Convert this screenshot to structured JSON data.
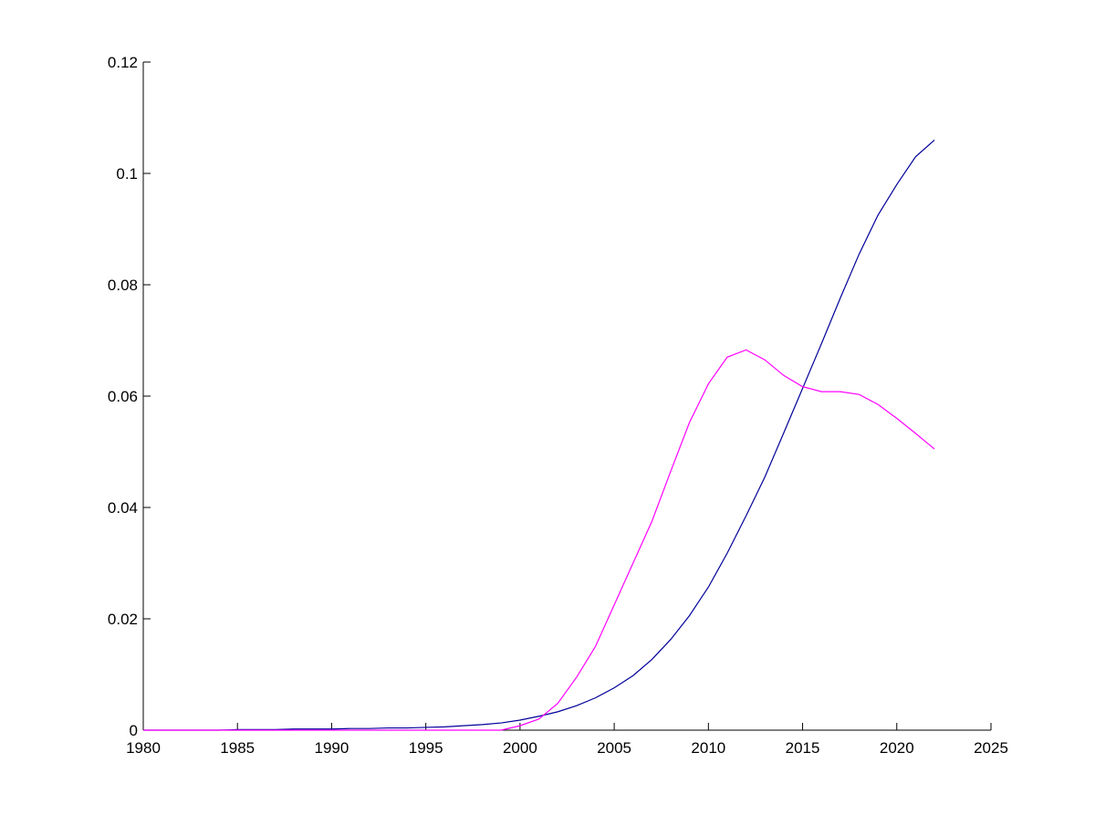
{
  "chart_data": {
    "type": "line",
    "x": [
      1980,
      1981,
      1982,
      1983,
      1984,
      1985,
      1986,
      1987,
      1988,
      1989,
      1990,
      1991,
      1992,
      1993,
      1994,
      1995,
      1996,
      1997,
      1998,
      1999,
      2000,
      2001,
      2002,
      2003,
      2004,
      2005,
      2006,
      2007,
      2008,
      2009,
      2010,
      2011,
      2012,
      2013,
      2014,
      2015,
      2016,
      2017,
      2018,
      2019,
      2020,
      2021,
      2022
    ],
    "series": [
      {
        "color": "#000099",
        "values": [
          0,
          0,
          0,
          0,
          0,
          0.0001,
          0.0001,
          0.0001,
          0.0002,
          0.0002,
          0.0002,
          0.0003,
          0.0003,
          0.0004,
          0.0004,
          0.0005,
          0.0006,
          0.0008,
          0.001,
          0.0013,
          0.0018,
          0.0025,
          0.0033,
          0.0044,
          0.0058,
          0.0076,
          0.0098,
          0.0127,
          0.0163,
          0.0206,
          0.0257,
          0.0318,
          0.0385,
          0.0455,
          0.0534,
          0.0614,
          0.0694,
          0.0776,
          0.0855,
          0.0925,
          0.098,
          0.103,
          0.106
        ]
      },
      {
        "color": "#ff00ff",
        "values": [
          0,
          0,
          0,
          0,
          0,
          0,
          0,
          0,
          0,
          0,
          0,
          0,
          0,
          0,
          0,
          0,
          0,
          0,
          0,
          0,
          0.0008,
          0.002,
          0.0048,
          0.0095,
          0.015,
          0.0225,
          0.03,
          0.0375,
          0.0465,
          0.0553,
          0.0622,
          0.067,
          0.0683,
          0.0665,
          0.0637,
          0.0617,
          0.0608,
          0.0608,
          0.0603,
          0.0585,
          0.056,
          0.0533,
          0.0505
        ]
      }
    ],
    "xlim": [
      1980,
      2025
    ],
    "xticks": [
      1980,
      1985,
      1990,
      1995,
      2000,
      2005,
      2010,
      2015,
      2020,
      2025
    ],
    "ylim": [
      0,
      0.12
    ],
    "yticks": [
      0,
      0.02,
      0.04,
      0.06,
      0.08,
      0.1,
      0.12
    ]
  }
}
